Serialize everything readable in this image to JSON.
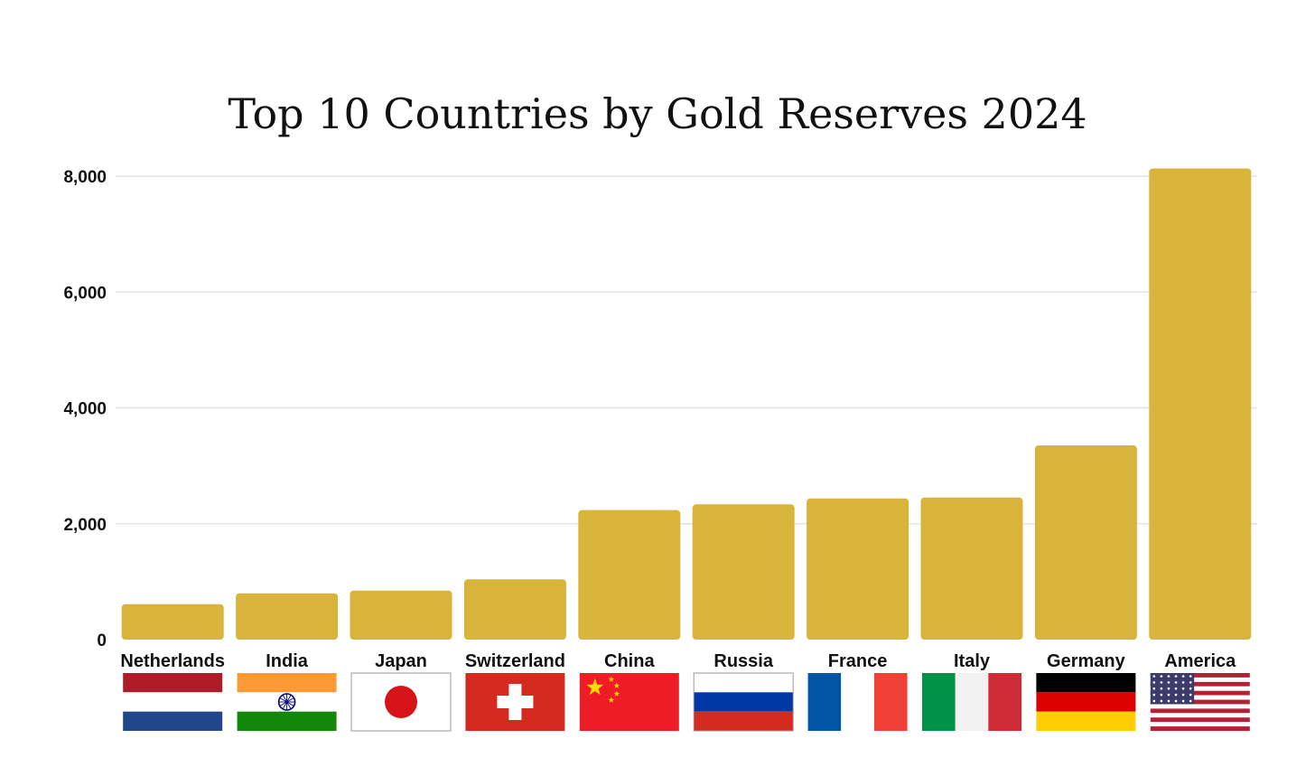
{
  "chart_data": {
    "type": "bar",
    "title": "Top 10 Countries by Gold Reserves 2024",
    "xlabel": "",
    "ylabel": "",
    "ylim": [
      0,
      8000
    ],
    "yticks": [
      0,
      2000,
      4000,
      6000,
      8000
    ],
    "ytick_labels": [
      "0",
      "2,000",
      "4,000",
      "6,000",
      "8,000"
    ],
    "grid": true,
    "categories": [
      "Netherlands",
      "India",
      "Japan",
      "Switzerland",
      "China",
      "Russia",
      "France",
      "Italy",
      "Germany",
      "America"
    ],
    "values": [
      612,
      800,
      846,
      1040,
      2235,
      2335,
      2437,
      2452,
      3352,
      8133
    ],
    "bar_color": "#D9B43A",
    "flag_icons": [
      "netherlands-flag-icon",
      "india-flag-icon",
      "japan-flag-icon",
      "switzerland-flag-icon",
      "china-flag-icon",
      "russia-flag-icon",
      "france-flag-icon",
      "italy-flag-icon",
      "germany-flag-icon",
      "usa-flag-icon"
    ]
  }
}
